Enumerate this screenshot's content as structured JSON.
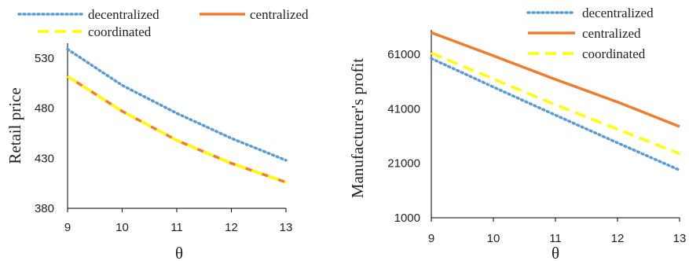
{
  "chart_data": [
    {
      "type": "line",
      "x": [
        9,
        10,
        11,
        12,
        13
      ],
      "xlabel": "θ",
      "ylabel": "Retail price",
      "xlim": [
        9,
        13
      ],
      "ylim": [
        380,
        545
      ],
      "xticks": [
        "9",
        "10",
        "11",
        "12",
        "13"
      ],
      "yticks": [
        "380",
        "430",
        "480",
        "530"
      ],
      "grid": false,
      "legend_position": "top",
      "series": [
        {
          "name": "decentralized",
          "color": "#5b9bd5",
          "style": "dotted",
          "values": [
            539,
            503,
            475,
            450,
            428
          ]
        },
        {
          "name": "centralized",
          "color": "#ed7d31",
          "style": "solid",
          "values": [
            512,
            477,
            448,
            425,
            406
          ]
        },
        {
          "name": "coordinated",
          "color": "#ffff00",
          "style": "dashed",
          "values": [
            512,
            477,
            448,
            425,
            406
          ]
        }
      ]
    },
    {
      "type": "line",
      "x": [
        9,
        10,
        11,
        12,
        13
      ],
      "xlabel": "θ",
      "ylabel": "Manufacturer's profit",
      "xlim": [
        9,
        13
      ],
      "ylim": [
        1000,
        70000
      ],
      "xticks": [
        "9",
        "10",
        "11",
        "12",
        "13"
      ],
      "yticks": [
        "1000",
        "21000",
        "41000",
        "61000"
      ],
      "grid": false,
      "legend_position": "top-right",
      "series": [
        {
          "name": "decentralized",
          "color": "#5b9bd5",
          "style": "dotted",
          "values": [
            59500,
            49000,
            38700,
            28500,
            18500
          ]
        },
        {
          "name": "centralized",
          "color": "#ed7d31",
          "style": "solid",
          "values": [
            69000,
            60500,
            51800,
            43500,
            34500
          ]
        },
        {
          "name": "coordinated",
          "color": "#ffff00",
          "style": "dashed",
          "values": [
            61500,
            52000,
            42500,
            33500,
            24500
          ]
        }
      ]
    }
  ]
}
